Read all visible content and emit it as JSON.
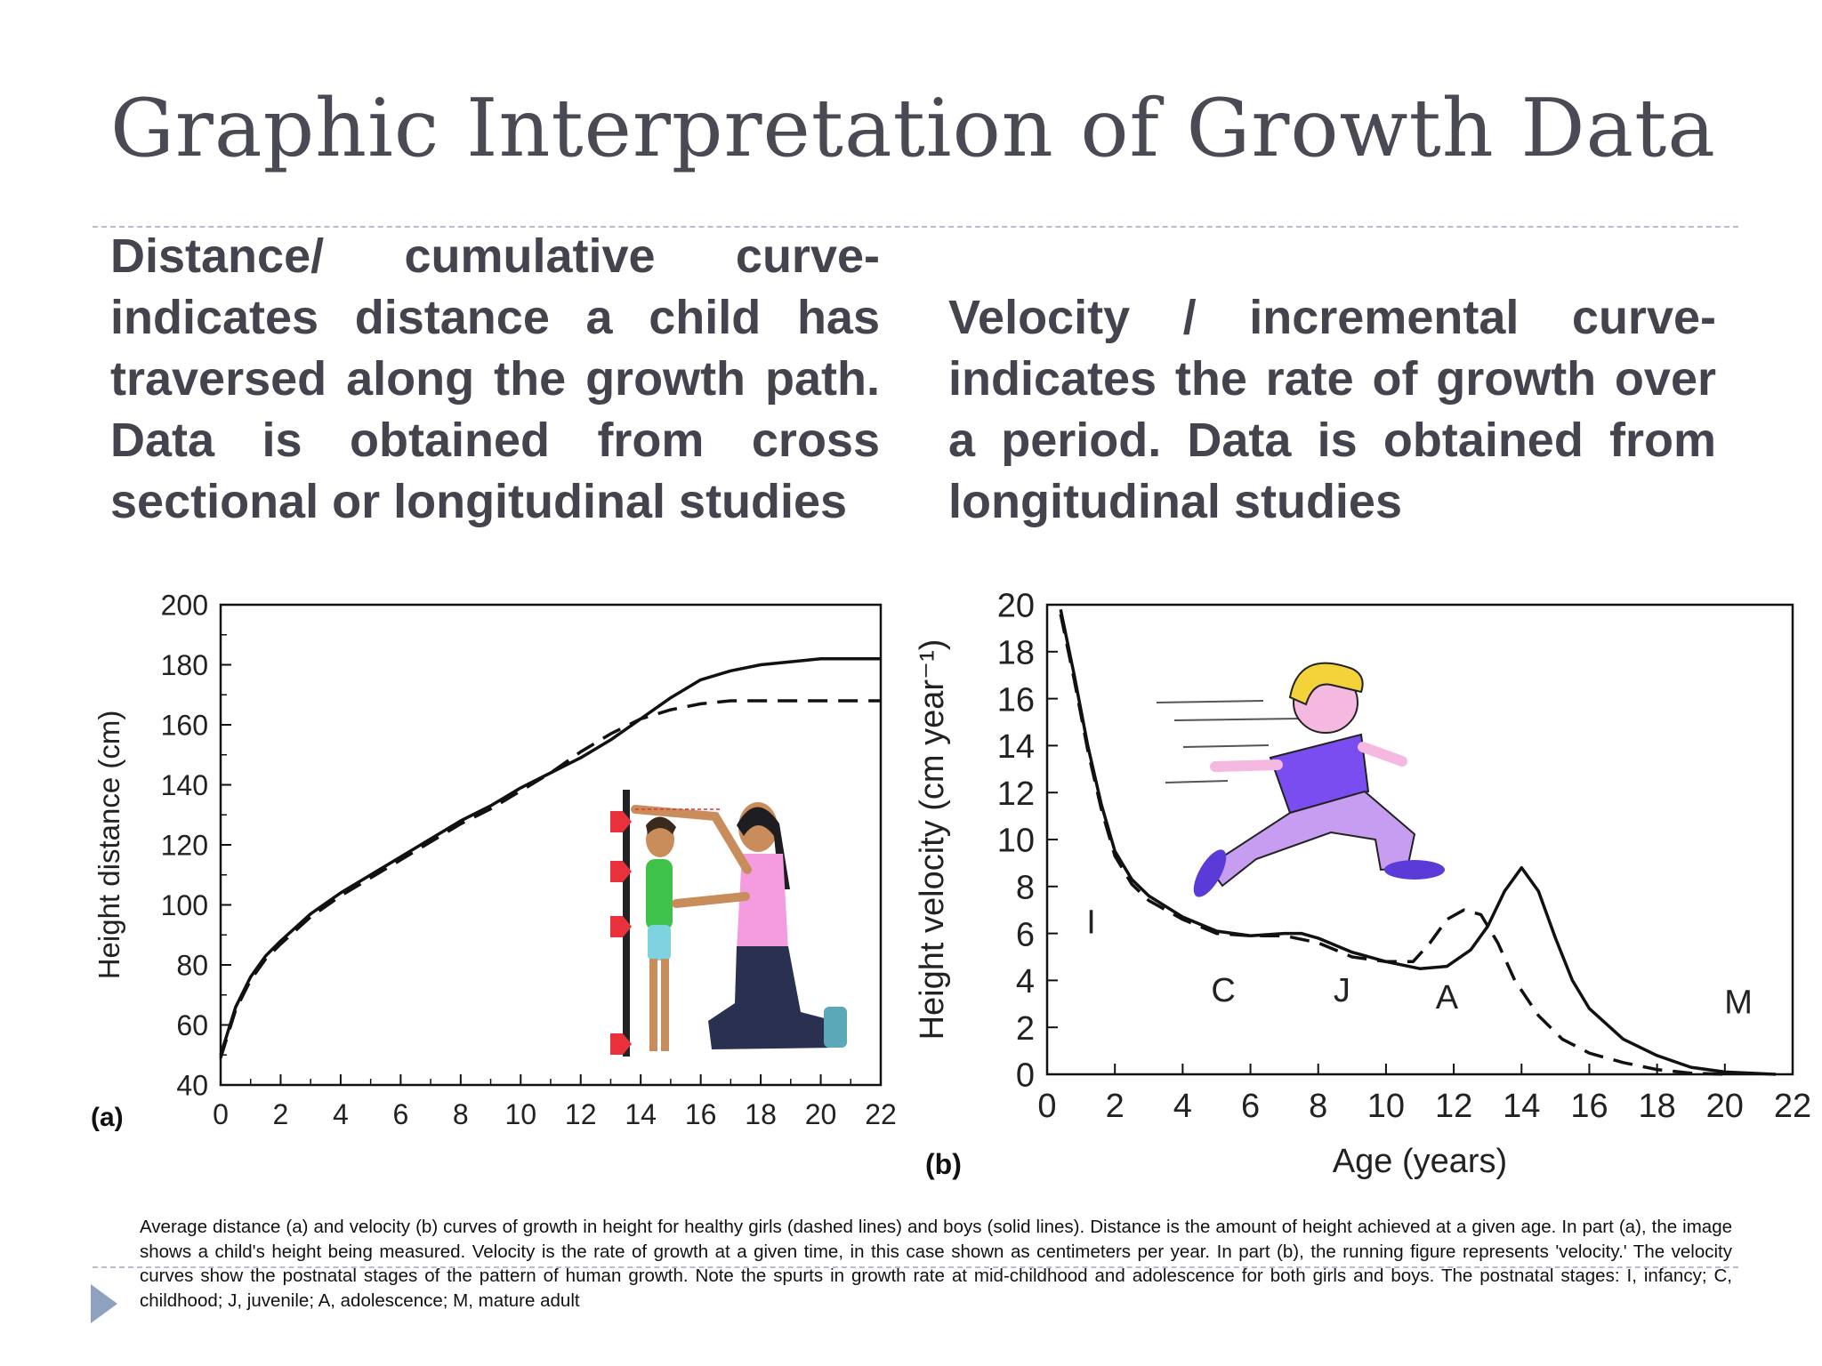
{
  "slide": {
    "title": "Graphic Interpretation of Growth Data",
    "left_text": "Distance/ cumulative curve- indicates distance a child has traversed along the growth path. Data is obtained from cross sectional or longitudinal studies",
    "right_text": "Velocity / incremental curve- indicates the rate of growth over a period. Data is obtained from longitudinal studies",
    "caption": "Average distance (a) and velocity (b) curves of growth in height for healthy girls (dashed lines) and boys (solid lines). Distance is the amount of height achieved at a given age. In part (a), the image shows a child's height being measured. Velocity is the rate of growth at a given time, in this case shown as centimeters per year. In part (b), the running figure represents 'velocity.' The velocity curves show the postnatal stages of the pattern of human growth. Note the spurts in growth rate at mid-childhood and adolescence for both girls and boys. The postnatal stages: I, infancy; C, childhood; J, juvenile; A, adolescence; M, mature adult",
    "icons": [
      "measuring-child-illustration-icon",
      "running-child-illustration-icon",
      "play-triangle-icon"
    ],
    "accent_color": "#8ea2bf"
  },
  "chart_data": [
    {
      "type": "line",
      "panel_label": "(a)",
      "xlabel": "",
      "ylabel": "Height distance (cm)",
      "xlim": [
        0,
        22
      ],
      "ylim": [
        40,
        200
      ],
      "x_ticks": [
        0,
        2,
        4,
        6,
        8,
        10,
        12,
        14,
        16,
        18,
        20,
        22
      ],
      "y_ticks": [
        40,
        60,
        80,
        100,
        120,
        140,
        160,
        180,
        200
      ],
      "series": [
        {
          "style": "solid",
          "points": [
            [
              0,
              50
            ],
            [
              0.5,
              66
            ],
            [
              1,
              76
            ],
            [
              1.5,
              83
            ],
            [
              2,
              88
            ],
            [
              3,
              97
            ],
            [
              4,
              104
            ],
            [
              5,
              110
            ],
            [
              6,
              116
            ],
            [
              7,
              122
            ],
            [
              8,
              128
            ],
            [
              9,
              133
            ],
            [
              10,
              139
            ],
            [
              11,
              144
            ],
            [
              12,
              149
            ],
            [
              13,
              155
            ],
            [
              14,
              162
            ],
            [
              15,
              169
            ],
            [
              16,
              175
            ],
            [
              17,
              178
            ],
            [
              18,
              180
            ],
            [
              19,
              181
            ],
            [
              20,
              182
            ],
            [
              22,
              182
            ]
          ]
        },
        {
          "style": "dashed",
          "points": [
            [
              0,
              49
            ],
            [
              0.5,
              65
            ],
            [
              1,
              75
            ],
            [
              1.5,
              82
            ],
            [
              2,
              87
            ],
            [
              3,
              96
            ],
            [
              4,
              103
            ],
            [
              5,
              109
            ],
            [
              6,
              115
            ],
            [
              7,
              121
            ],
            [
              8,
              127
            ],
            [
              9,
              132
            ],
            [
              10,
              138
            ],
            [
              11,
              144
            ],
            [
              12,
              151
            ],
            [
              13,
              157
            ],
            [
              14,
              162
            ],
            [
              15,
              165
            ],
            [
              16,
              167
            ],
            [
              17,
              168
            ],
            [
              18,
              168
            ],
            [
              20,
              168
            ],
            [
              22,
              168
            ]
          ]
        }
      ]
    },
    {
      "type": "line",
      "panel_label": "(b)",
      "xlabel": "Age (years)",
      "ylabel": "Height velocity (cm year⁻¹)",
      "xlim": [
        0,
        22
      ],
      "ylim": [
        0,
        20
      ],
      "x_ticks": [
        0,
        2,
        4,
        6,
        8,
        10,
        12,
        14,
        16,
        18,
        20,
        22
      ],
      "y_ticks": [
        0,
        2,
        4,
        6,
        8,
        10,
        12,
        14,
        16,
        18,
        20
      ],
      "annotations": [
        {
          "text": "I",
          "x": 1.3,
          "y": 6
        },
        {
          "text": "C",
          "x": 5.2,
          "y": 3.1
        },
        {
          "text": "J",
          "x": 8.7,
          "y": 3.1
        },
        {
          "text": "A",
          "x": 11.8,
          "y": 2.8
        },
        {
          "text": "M",
          "x": 20.4,
          "y": 2.6
        }
      ],
      "series": [
        {
          "style": "solid",
          "points": [
            [
              0.4,
              19.8
            ],
            [
              0.8,
              17
            ],
            [
              1.2,
              14
            ],
            [
              1.6,
              11.5
            ],
            [
              2,
              9.5
            ],
            [
              2.5,
              8.3
            ],
            [
              3,
              7.6
            ],
            [
              4,
              6.7
            ],
            [
              5,
              6.1
            ],
            [
              6,
              5.9
            ],
            [
              7,
              6
            ],
            [
              7.5,
              6
            ],
            [
              8,
              5.8
            ],
            [
              9,
              5.2
            ],
            [
              10,
              4.8
            ],
            [
              11,
              4.5
            ],
            [
              11.8,
              4.6
            ],
            [
              12.5,
              5.3
            ],
            [
              13,
              6.3
            ],
            [
              13.5,
              7.8
            ],
            [
              14,
              8.8
            ],
            [
              14.5,
              7.8
            ],
            [
              15,
              5.8
            ],
            [
              15.5,
              4
            ],
            [
              16,
              2.8
            ],
            [
              17,
              1.5
            ],
            [
              18,
              0.8
            ],
            [
              19,
              0.3
            ],
            [
              20,
              0.1
            ],
            [
              21.5,
              0
            ]
          ]
        },
        {
          "style": "dashed",
          "points": [
            [
              0.4,
              19.6
            ],
            [
              0.8,
              16.8
            ],
            [
              1.2,
              13.8
            ],
            [
              1.6,
              11.3
            ],
            [
              2,
              9.3
            ],
            [
              2.5,
              8.1
            ],
            [
              3,
              7.4
            ],
            [
              4,
              6.6
            ],
            [
              5,
              6
            ],
            [
              6,
              5.9
            ],
            [
              7,
              5.9
            ],
            [
              8,
              5.6
            ],
            [
              9,
              5
            ],
            [
              10,
              4.8
            ],
            [
              10.8,
              4.8
            ],
            [
              11.3,
              5.6
            ],
            [
              11.8,
              6.6
            ],
            [
              12.3,
              7
            ],
            [
              12.8,
              6.8
            ],
            [
              13.3,
              5.6
            ],
            [
              13.8,
              4
            ],
            [
              14.5,
              2.5
            ],
            [
              15.2,
              1.5
            ],
            [
              16,
              0.9
            ],
            [
              17,
              0.5
            ],
            [
              18,
              0.2
            ],
            [
              19,
              0.05
            ],
            [
              20,
              0
            ]
          ]
        }
      ]
    }
  ]
}
